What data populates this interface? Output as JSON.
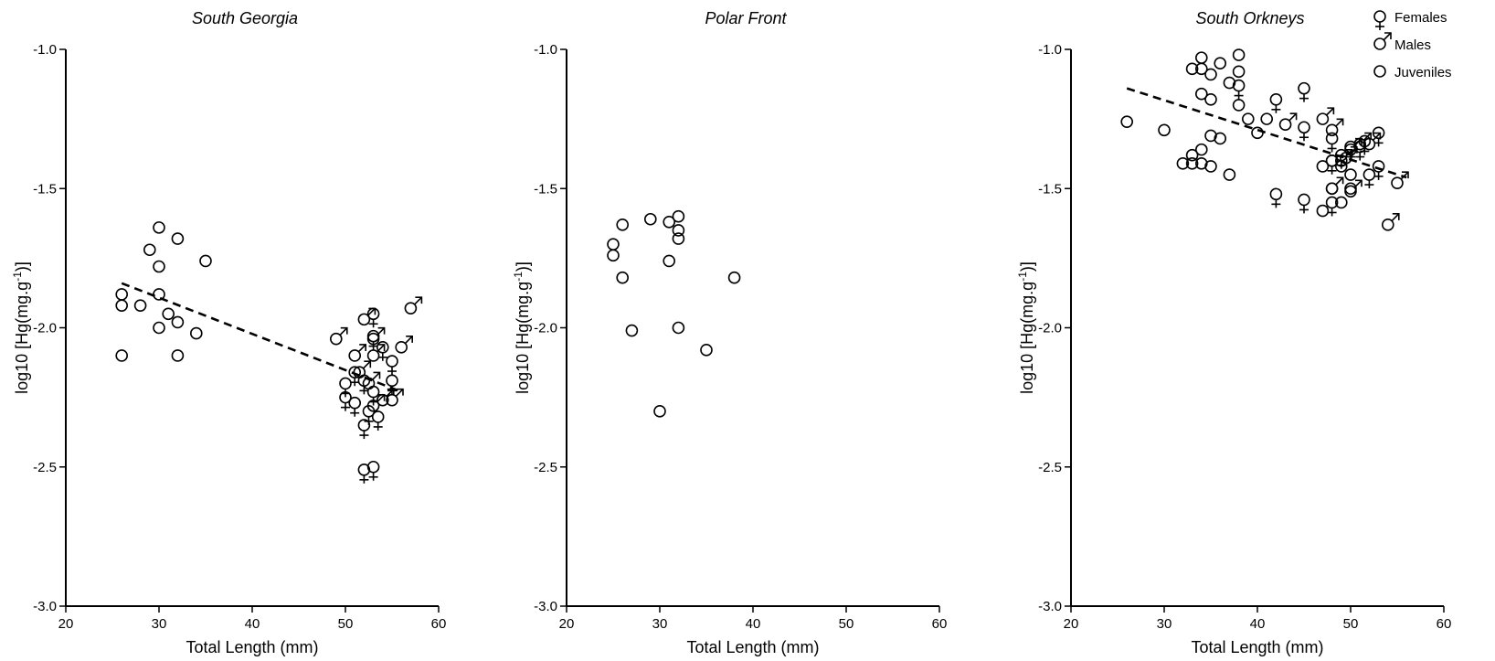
{
  "chart_data": [
    {
      "type": "scatter",
      "title": "South Georgia",
      "xlabel": "Total Length (mm)",
      "ylabel": "log10 [Hg(mg.g-1)]",
      "xlim": [
        20,
        60
      ],
      "ylim": [
        -3.0,
        -1.0
      ],
      "xticks": [
        "20",
        "30",
        "40",
        "50",
        "60"
      ],
      "yticks": [
        "-1.0",
        "-1.5",
        "-2.0",
        "-2.5",
        "-3.0"
      ],
      "series": [
        {
          "name": "Juveniles",
          "marker": "circle",
          "points": [
            [
              26,
              -1.88
            ],
            [
              26,
              -1.92
            ],
            [
              26,
              -2.1
            ],
            [
              28,
              -1.92
            ],
            [
              29,
              -1.72
            ],
            [
              30,
              -1.64
            ],
            [
              30,
              -1.78
            ],
            [
              30,
              -1.88
            ],
            [
              30,
              -2.0
            ],
            [
              31,
              -1.95
            ],
            [
              32,
              -1.68
            ],
            [
              32,
              -1.98
            ],
            [
              32,
              -2.1
            ],
            [
              34,
              -2.02
            ],
            [
              35,
              -1.76
            ]
          ]
        },
        {
          "name": "Females",
          "marker": "female",
          "points": [
            [
              50,
              -2.2
            ],
            [
              50,
              -2.25
            ],
            [
              51,
              -2.16
            ],
            [
              51,
              -2.27
            ],
            [
              52,
              -2.19
            ],
            [
              52,
              -2.35
            ],
            [
              52,
              -2.51
            ],
            [
              53,
              -2.5
            ],
            [
              53,
              -1.95
            ],
            [
              53,
              -2.03
            ],
            [
              53,
              -2.23
            ],
            [
              54,
              -2.07
            ],
            [
              55,
              -2.12
            ],
            [
              55,
              -2.19
            ],
            [
              52.5,
              -2.3
            ],
            [
              53.5,
              -2.32
            ]
          ]
        },
        {
          "name": "Males",
          "marker": "male",
          "points": [
            [
              49,
              -2.04
            ],
            [
              51,
              -2.1
            ],
            [
              52,
              -1.97
            ],
            [
              53,
              -2.1
            ],
            [
              53,
              -2.28
            ],
            [
              54,
              -2.26
            ],
            [
              55,
              -2.26
            ],
            [
              56,
              -2.07
            ],
            [
              57,
              -1.93
            ],
            [
              51.5,
              -2.16
            ],
            [
              52.5,
              -2.2
            ],
            [
              53,
              -2.04
            ]
          ]
        }
      ],
      "trendline": [
        [
          26,
          -1.84
        ],
        [
          56,
          -2.23
        ]
      ]
    },
    {
      "type": "scatter",
      "title": "Polar Front",
      "xlabel": "Total Length (mm)",
      "ylabel": "log10 [Hg(mg.g-1)]",
      "xlim": [
        20,
        60
      ],
      "ylim": [
        -3.0,
        -1.0
      ],
      "xticks": [
        "20",
        "30",
        "40",
        "50",
        "60"
      ],
      "yticks": [
        "-1.0",
        "-1.5",
        "-2.0",
        "-2.5",
        "-3.0"
      ],
      "series": [
        {
          "name": "Juveniles",
          "marker": "circle",
          "points": [
            [
              25,
              -1.7
            ],
            [
              25,
              -1.74
            ],
            [
              26,
              -1.63
            ],
            [
              26,
              -1.82
            ],
            [
              27,
              -2.01
            ],
            [
              29,
              -1.61
            ],
            [
              30,
              -2.3
            ],
            [
              31,
              -1.62
            ],
            [
              31,
              -1.76
            ],
            [
              32,
              -1.6
            ],
            [
              32,
              -1.65
            ],
            [
              32,
              -1.68
            ],
            [
              32,
              -2.0
            ],
            [
              35,
              -2.08
            ],
            [
              38,
              -1.82
            ]
          ]
        }
      ]
    },
    {
      "type": "scatter",
      "title": "South Orkneys",
      "xlabel": "Total Length (mm)",
      "ylabel": "log10 [Hg(mg.g-1)]",
      "xlim": [
        20,
        60
      ],
      "ylim": [
        -3.0,
        -1.0
      ],
      "xticks": [
        "20",
        "30",
        "40",
        "50",
        "60"
      ],
      "yticks": [
        "-1.0",
        "-1.5",
        "-2.0",
        "-2.5",
        "-3.0"
      ],
      "legend": {
        "position": "top-right",
        "entries": [
          "Females",
          "Males",
          "Juveniles"
        ]
      },
      "series": [
        {
          "name": "Juveniles",
          "marker": "circle",
          "points": [
            [
              26,
              -1.26
            ],
            [
              30,
              -1.29
            ],
            [
              32,
              -1.41
            ],
            [
              33,
              -1.07
            ],
            [
              33,
              -1.38
            ],
            [
              33,
              -1.41
            ],
            [
              34,
              -1.03
            ],
            [
              34,
              -1.07
            ],
            [
              34,
              -1.16
            ],
            [
              34,
              -1.36
            ],
            [
              34,
              -1.41
            ],
            [
              35,
              -1.09
            ],
            [
              35,
              -1.18
            ],
            [
              35,
              -1.31
            ],
            [
              35,
              -1.42
            ],
            [
              36,
              -1.05
            ],
            [
              36,
              -1.32
            ],
            [
              37,
              -1.12
            ],
            [
              37,
              -1.45
            ],
            [
              38,
              -1.02
            ],
            [
              38,
              -1.08
            ],
            [
              38,
              -1.2
            ],
            [
              39,
              -1.25
            ],
            [
              40,
              -1.3
            ],
            [
              41,
              -1.25
            ],
            [
              47,
              -1.42
            ],
            [
              47,
              -1.58
            ],
            [
              48,
              -1.4
            ],
            [
              48,
              -1.5
            ],
            [
              49,
              -1.55
            ],
            [
              49,
              -1.42
            ],
            [
              50,
              -1.45
            ],
            [
              50,
              -1.5
            ]
          ]
        },
        {
          "name": "Females",
          "marker": "female",
          "points": [
            [
              38,
              -1.13
            ],
            [
              42,
              -1.18
            ],
            [
              45,
              -1.14
            ],
            [
              45,
              -1.28
            ],
            [
              42,
              -1.52
            ],
            [
              45,
              -1.54
            ],
            [
              48,
              -1.32
            ],
            [
              48,
              -1.4
            ],
            [
              48,
              -1.55
            ],
            [
              49,
              -1.38
            ],
            [
              50,
              -1.35
            ],
            [
              51,
              -1.35
            ],
            [
              52,
              -1.45
            ],
            [
              53,
              -1.3
            ],
            [
              53,
              -1.42
            ],
            [
              51.5,
              -1.33
            ]
          ]
        },
        {
          "name": "Males",
          "marker": "male",
          "points": [
            [
              43,
              -1.27
            ],
            [
              47,
              -1.25
            ],
            [
              48,
              -1.29
            ],
            [
              48,
              -1.5
            ],
            [
              49,
              -1.4
            ],
            [
              50,
              -1.36
            ],
            [
              50,
              -1.51
            ],
            [
              51,
              -1.34
            ],
            [
              52,
              -1.34
            ],
            [
              55,
              -1.48
            ],
            [
              54,
              -1.63
            ],
            [
              49.5,
              -1.39
            ]
          ]
        }
      ],
      "trendline": [
        [
          26,
          -1.14
        ],
        [
          56,
          -1.46
        ]
      ]
    }
  ]
}
